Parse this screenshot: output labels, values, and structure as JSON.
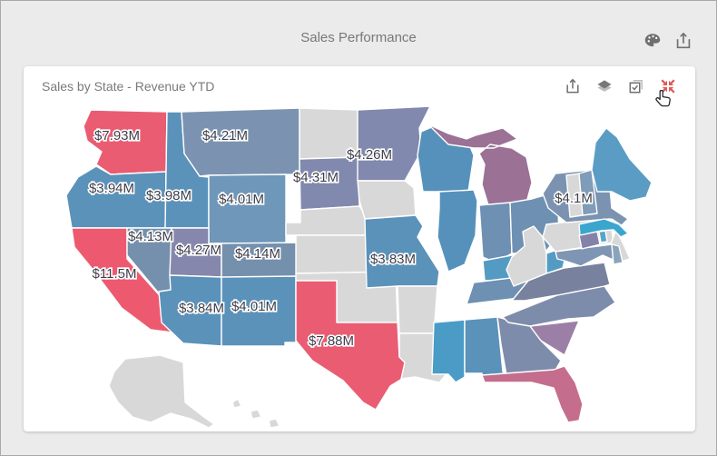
{
  "header": {
    "title": "Sales Performance",
    "icons": [
      {
        "name": "palette-icon"
      },
      {
        "name": "export-icon"
      }
    ]
  },
  "card": {
    "title": "Sales by State - Revenue YTD",
    "toolbar_icons": [
      {
        "name": "export-icon"
      },
      {
        "name": "layers-icon"
      },
      {
        "name": "multi-select-icon"
      },
      {
        "name": "restore-icon"
      }
    ],
    "cursor": "hand-pointer"
  },
  "colors": {
    "background": "#ebebeb",
    "card_background": "#ffffff",
    "frame_border": "#a8a8a8",
    "icon_gray": "#6f6f6f",
    "restore_red": "#e05a58",
    "label_text": "#3f3f4c",
    "no_data_state": "#d8d8d8",
    "state_border": "#ffffff"
  },
  "chart_data": {
    "type": "choropleth_map",
    "title": "Sales by State - Revenue YTD",
    "region": "United States",
    "metric": "Revenue YTD",
    "states": [
      {
        "id": "WA",
        "label": "$7.93M",
        "color": "#e95c72"
      },
      {
        "id": "OR",
        "label": "$3.94M",
        "color": "#5b92ba"
      },
      {
        "id": "CA",
        "label": "$11.5M",
        "color": "#ed5a70"
      },
      {
        "id": "ID",
        "label": "$3.98M",
        "color": "#5b92ba"
      },
      {
        "id": "MT",
        "label": "$4.21M",
        "color": "#7b93b1"
      },
      {
        "id": "WY",
        "label": "$4.01M",
        "color": "#6e97ba"
      },
      {
        "id": "NV",
        "label": "$4.13M",
        "color": "#7590ac"
      },
      {
        "id": "UT",
        "label": "$4.27M",
        "color": "#8687ac"
      },
      {
        "id": "CO",
        "label": "$4.14M",
        "color": "#7590ac"
      },
      {
        "id": "AZ",
        "label": "$3.84M",
        "color": "#5b92ba"
      },
      {
        "id": "NM",
        "label": "$4.01M",
        "color": "#5b92ba"
      },
      {
        "id": "ND",
        "label": null,
        "color": "#d8d8d8"
      },
      {
        "id": "SD",
        "label": "$4.31M",
        "color": "#8289ae"
      },
      {
        "id": "NE",
        "label": null,
        "color": "#d8d8d8"
      },
      {
        "id": "KS",
        "label": null,
        "color": "#d8d8d8"
      },
      {
        "id": "OK",
        "label": null,
        "color": "#d8d8d8"
      },
      {
        "id": "TX",
        "label": "$7.88M",
        "color": "#e95c72"
      },
      {
        "id": "MN",
        "label": "$4.26M",
        "color": "#8289ae"
      },
      {
        "id": "IA",
        "label": null,
        "color": "#d8d8d8"
      },
      {
        "id": "MO",
        "label": "$3.83M",
        "color": "#5b92ba"
      },
      {
        "id": "AR",
        "label": null,
        "color": "#d8d8d8"
      },
      {
        "id": "LA",
        "label": null,
        "color": "#d8d8d8"
      },
      {
        "id": "WI",
        "label": null,
        "color": "#5591bb"
      },
      {
        "id": "IL",
        "label": null,
        "color": "#5591bb"
      },
      {
        "id": "MI",
        "label": null,
        "color": "#9b7195"
      },
      {
        "id": "IN",
        "label": null,
        "color": "#6e90b2"
      },
      {
        "id": "OH",
        "label": null,
        "color": "#6e90b2"
      },
      {
        "id": "KY",
        "label": null,
        "color": "#549bc4"
      },
      {
        "id": "TN",
        "label": null,
        "color": "#6e90b2"
      },
      {
        "id": "MS",
        "label": null,
        "color": "#4a9cc6"
      },
      {
        "id": "AL",
        "label": null,
        "color": "#5b92ba"
      },
      {
        "id": "GA",
        "label": null,
        "color": "#7e8cab"
      },
      {
        "id": "FL",
        "label": null,
        "color": "#c56d8c"
      },
      {
        "id": "SC",
        "label": null,
        "color": "#9c7fa6"
      },
      {
        "id": "NC",
        "label": null,
        "color": "#7e8cab"
      },
      {
        "id": "VA",
        "label": null,
        "color": "#78829e"
      },
      {
        "id": "WV",
        "label": null,
        "color": "#d8d8d8"
      },
      {
        "id": "PA",
        "label": null,
        "color": "#d8d8d8"
      },
      {
        "id": "NY",
        "label": "$4.1M",
        "color": "#7b93b1"
      },
      {
        "id": "NJ",
        "label": null,
        "color": "#d8d8d8"
      },
      {
        "id": "MD",
        "label": null,
        "color": "#7e96b3"
      },
      {
        "id": "DE",
        "label": null,
        "color": "#8aa4bb"
      },
      {
        "id": "CT",
        "label": null,
        "color": "#8482a8"
      },
      {
        "id": "RI",
        "label": null,
        "color": "#55a5c8"
      },
      {
        "id": "MA",
        "label": null,
        "color": "#3ca5ce"
      },
      {
        "id": "VT",
        "label": null,
        "color": "#d8d8d8"
      },
      {
        "id": "NH",
        "label": null,
        "color": "#7f9cb8"
      },
      {
        "id": "ME",
        "label": null,
        "color": "#5b9cc4"
      },
      {
        "id": "AK",
        "label": null,
        "color": "#d8d8d8"
      },
      {
        "id": "HI",
        "label": null,
        "color": "#d8d8d8"
      }
    ]
  }
}
